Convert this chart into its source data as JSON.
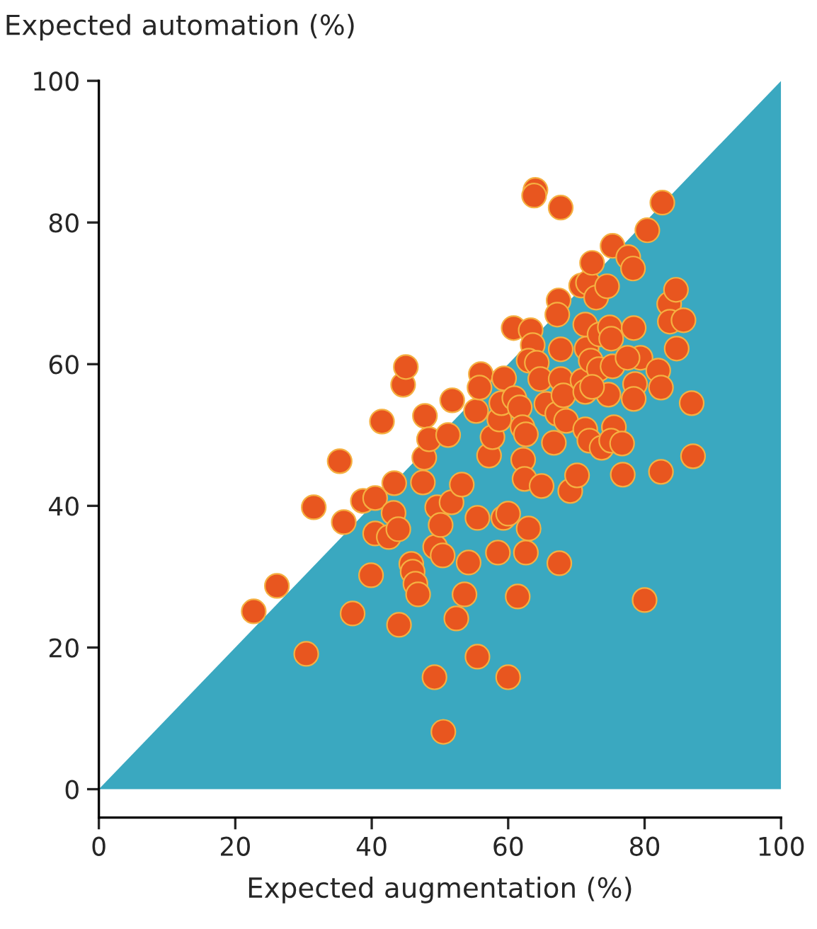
{
  "chart_data": {
    "type": "scatter",
    "ylabel": "Expected automation (%)",
    "xlabel": "Expected augmentation (%)",
    "xlim": [
      0,
      100
    ],
    "ylim": [
      -4,
      100
    ],
    "xticks": [
      0,
      20,
      40,
      60,
      80,
      100
    ],
    "yticks": [
      0,
      20,
      40,
      60,
      80,
      100
    ],
    "grid": false,
    "legend": false,
    "series": [
      {
        "type": "area",
        "color": "#3aa8c0",
        "x": [
          0,
          100
        ],
        "values": [
          0,
          100
        ]
      },
      {
        "marker": "circle",
        "color": "#e8561f",
        "x": [
          22.7,
          26.1,
          30.4,
          31.5,
          35.3,
          35.9,
          37.2,
          38.7,
          40.5,
          41.5,
          40.5,
          39.9,
          42.5,
          43.3,
          43.2,
          43.9,
          44.0,
          44.6,
          45.0,
          45.8,
          46.0,
          46.4,
          46.8,
          47.5,
          47.7,
          47.8,
          48.4,
          49.2,
          49.3,
          49.6,
          50.1,
          50.4,
          50.5,
          51.2,
          51.7,
          51.8,
          52.4,
          53.2,
          53.6,
          54.2,
          55.3,
          55.5,
          55.5,
          56.0,
          55.8,
          57.2,
          57.7,
          58.5,
          58.7,
          59.0,
          59.4,
          59.3,
          60.0,
          60.0,
          60.9,
          61.4,
          60.8,
          61.7,
          62.1,
          62.2,
          62.4,
          62.6,
          63.0,
          62.6,
          63.3,
          63.6,
          63.0,
          64.2,
          64.0,
          63.8,
          64.7,
          64.9,
          65.6,
          66.7,
          67.5,
          67.4,
          67.2,
          67.7,
          67.7,
          67.7,
          67.2,
          68.1,
          68.5,
          69.1,
          70.1,
          70.7,
          70.9,
          71.3,
          71.5,
          71.7,
          71.3,
          71.3,
          71.9,
          72.1,
          72.3,
          72.9,
          73.4,
          73.3,
          73.7,
          74.5,
          74.7,
          74.9,
          75.1,
          75.3,
          75.3,
          75.5,
          75.1,
          76.7,
          76.8,
          77.6,
          78.3,
          78.4,
          78.6,
          78.4,
          79.4,
          80.0,
          80.4,
          82.0,
          82.4,
          82.6,
          82.4,
          83.6,
          83.7,
          84.6,
          84.7,
          85.7,
          86.9,
          87.1,
          77.5,
          72.3
        ],
        "values": [
          25.1,
          28.7,
          19.1,
          39.8,
          46.3,
          37.7,
          24.8,
          40.7,
          41.1,
          51.9,
          36.1,
          30.2,
          35.6,
          43.2,
          39.0,
          36.7,
          23.2,
          57.1,
          59.6,
          31.8,
          30.7,
          29.0,
          27.5,
          43.3,
          46.8,
          52.7,
          49.4,
          15.8,
          34.2,
          39.8,
          37.3,
          33.0,
          8.1,
          50.0,
          40.5,
          54.9,
          24.1,
          43.0,
          27.5,
          32.0,
          53.4,
          38.3,
          18.7,
          58.6,
          56.7,
          47.1,
          49.7,
          33.4,
          52.2,
          54.5,
          58.0,
          38.3,
          38.9,
          15.8,
          55.2,
          27.2,
          65.1,
          53.9,
          51.1,
          46.5,
          43.8,
          33.4,
          36.8,
          50.1,
          64.8,
          62.7,
          60.5,
          60.2,
          84.6,
          83.8,
          57.9,
          42.8,
          54.4,
          48.9,
          31.9,
          69.0,
          67.0,
          62.1,
          57.9,
          82.1,
          53.0,
          55.6,
          52.0,
          42.1,
          44.3,
          71.1,
          57.7,
          65.6,
          62.2,
          71.5,
          56.1,
          50.8,
          49.2,
          60.5,
          74.3,
          69.4,
          64.2,
          59.3,
          48.2,
          71.0,
          55.7,
          65.2,
          63.6,
          59.7,
          76.7,
          51.1,
          49.2,
          48.8,
          44.4,
          75.1,
          73.5,
          65.1,
          57.2,
          55.1,
          60.9,
          26.7,
          78.9,
          59.1,
          56.7,
          82.8,
          44.8,
          68.5,
          66.0,
          70.5,
          62.2,
          66.2,
          54.5,
          47.0,
          60.9,
          56.8
        ]
      }
    ]
  }
}
